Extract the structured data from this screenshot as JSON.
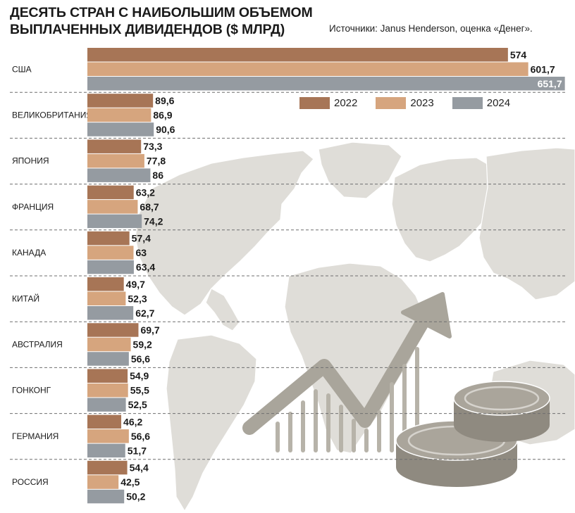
{
  "title_line1": "ДЕСЯТЬ СТРАН С НАИБОЛЬШИМ ОБЪЕМОМ",
  "title_line2": "ВЫПЛАЧЕННЫХ ДИВИДЕНДОВ ($ МЛРД)",
  "source": "Источники: Janus Henderson, оценка «Денег».",
  "colors": {
    "s2022": "#a77556",
    "s2023": "#d6a57e",
    "s2024": "#959ba1",
    "map": "#dfddd8",
    "map_border": "#ffffff",
    "decor": "#a9a59b"
  },
  "chart_data": {
    "type": "bar",
    "orientation": "horizontal",
    "title": "ДЕСЯТЬ СТРАН С НАИБОЛЬШИМ ОБЪЕМОМ ВЫПЛАЧЕННЫХ ДИВИДЕНДОВ ($ МЛРД)",
    "categories": [
      "США",
      "ВЕЛИКОБРИТАНИЯ",
      "ЯПОНИЯ",
      "ФРАНЦИЯ",
      "КАНАДА",
      "КИТАЙ",
      "АВСТРАЛИЯ",
      "ГОНКОНГ",
      "ГЕРМАНИЯ",
      "РОССИЯ"
    ],
    "series": [
      {
        "name": "2022",
        "values": [
          574,
          89.6,
          73.3,
          63.2,
          57.4,
          49.7,
          69.7,
          54.9,
          46.2,
          54.4
        ],
        "labels": [
          "574",
          "89,6",
          "73,3",
          "63,2",
          "57,4",
          "49,7",
          "69,7",
          "54,9",
          "46,2",
          "54,4"
        ]
      },
      {
        "name": "2023",
        "values": [
          601.7,
          86.9,
          77.8,
          68.7,
          63,
          52.3,
          59.2,
          55.5,
          56.6,
          42.5
        ],
        "labels": [
          "601,7",
          "86,9",
          "77,8",
          "68,7",
          "63",
          "52,3",
          "59,2",
          "55,5",
          "56,6",
          "42,5"
        ]
      },
      {
        "name": "2024",
        "values": [
          651.7,
          90.6,
          86,
          74.2,
          63.4,
          62.7,
          56.6,
          52.5,
          51.7,
          50.2
        ],
        "labels": [
          "651,7",
          "90,6",
          "86",
          "74,2",
          "63,4",
          "62,7",
          "56,6",
          "52,5",
          "51,7",
          "50,2"
        ]
      }
    ],
    "legend_position": "top-right",
    "grid": false
  }
}
